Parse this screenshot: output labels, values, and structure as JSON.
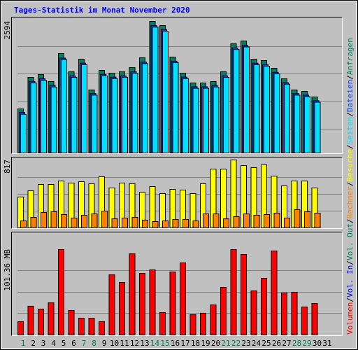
{
  "chart_data": [
    {
      "type": "bar",
      "title": "Tages-Statistik im Monat November 2020",
      "legend_separator": "/",
      "ylim": [
        0,
        2594
      ],
      "yticks": [
        2594
      ],
      "series": [
        {
          "name": "Anfragen",
          "color": "#00805c",
          "values": [
            869,
            1490,
            1545,
            1407,
            1959,
            1600,
            1849,
            1242,
            1628,
            1573,
            1600,
            1683,
            1877,
            2594,
            2511,
            1890,
            1573,
            1380,
            1380,
            1407,
            1600,
            2152,
            2207,
            1849,
            1821,
            1669,
            1462,
            1242,
            1214,
            1104,
            null
          ]
        },
        {
          "name": "Dateien",
          "color": "#0040ff",
          "values": [
            800,
            1410,
            1465,
            1330,
            1870,
            1520,
            1770,
            1170,
            1550,
            1495,
            1520,
            1600,
            1790,
            2510,
            2430,
            1810,
            1495,
            1305,
            1305,
            1330,
            1520,
            2070,
            2120,
            1770,
            1740,
            1590,
            1385,
            1170,
            1140,
            1030,
            null
          ]
        },
        {
          "name": "Seiten",
          "color": "#00e0ff",
          "values": [
            760,
            1380,
            1430,
            1300,
            1840,
            1490,
            1740,
            1140,
            1520,
            1465,
            1490,
            1570,
            1760,
            2480,
            2400,
            1780,
            1465,
            1275,
            1275,
            1300,
            1490,
            2040,
            2090,
            1740,
            1710,
            1560,
            1355,
            1140,
            1110,
            1000,
            null
          ]
        }
      ]
    },
    {
      "type": "bar",
      "ylim": [
        0,
        817
      ],
      "yticks": [
        817
      ],
      "series": [
        {
          "name": "Besuche",
          "color": "#ffff00",
          "values": [
            371,
            446,
            522,
            522,
            564,
            539,
            556,
            531,
            615,
            480,
            539,
            531,
            429,
            497,
            413,
            463,
            455,
            413,
            531,
            707,
            707,
            817,
            749,
            724,
            758,
            623,
            505,
            564,
            564,
            480,
            null
          ]
        },
        {
          "name": "Rechner",
          "color": "#ff8000",
          "values": [
            84,
            126,
            185,
            194,
            160,
            118,
            152,
            168,
            202,
            109,
            118,
            126,
            93,
            76,
            84,
            101,
            101,
            84,
            168,
            168,
            109,
            135,
            168,
            152,
            160,
            177,
            118,
            219,
            194,
            177,
            null
          ]
        }
      ]
    },
    {
      "type": "bar",
      "ylim": [
        0,
        101.36
      ],
      "yticks": [
        {
          "value": 101.36,
          "label": "101.36 MB"
        }
      ],
      "categories": [
        "1",
        "2",
        "3",
        "4",
        "5",
        "6",
        "7",
        "8",
        "9",
        "10",
        "11",
        "12",
        "13",
        "14",
        "15",
        "16",
        "17",
        "18",
        "19",
        "20",
        "21",
        "22",
        "23",
        "24",
        "25",
        "26",
        "27",
        "28",
        "29",
        "30",
        "31"
      ],
      "category_colors": [
        "#00805c",
        "#000000",
        "#000000",
        "#000000",
        "#000000",
        "#000000",
        "#00805c",
        "#00805c",
        "#000000",
        "#000000",
        "#000000",
        "#000000",
        "#000000",
        "#00805c",
        "#00805c",
        "#000000",
        "#000000",
        "#000000",
        "#000000",
        "#000000",
        "#00805c",
        "#00805c",
        "#000000",
        "#000000",
        "#000000",
        "#000000",
        "#000000",
        "#00805c",
        "#00805c",
        "#000000",
        "#000000"
      ],
      "series": [
        {
          "name": "Volumen",
          "color": "#ff0000",
          "values": [
            15.8,
            34.1,
            30.7,
            38.2,
            101.36,
            29.1,
            19.9,
            19.9,
            15.8,
            71.4,
            62.3,
            96.4,
            73.1,
            77.3,
            26.6,
            74.8,
            85.6,
            24.1,
            25.8,
            35.7,
            56.5,
            101.36,
            95.5,
            52.3,
            67.3,
            99.7,
            49.8,
            50.7,
            33.2,
            37.4,
            null
          ]
        },
        {
          "name": "Vol. In",
          "color": "#0000ff"
        },
        {
          "name": "Vol. Out",
          "color": "#00805c"
        }
      ]
    }
  ]
}
